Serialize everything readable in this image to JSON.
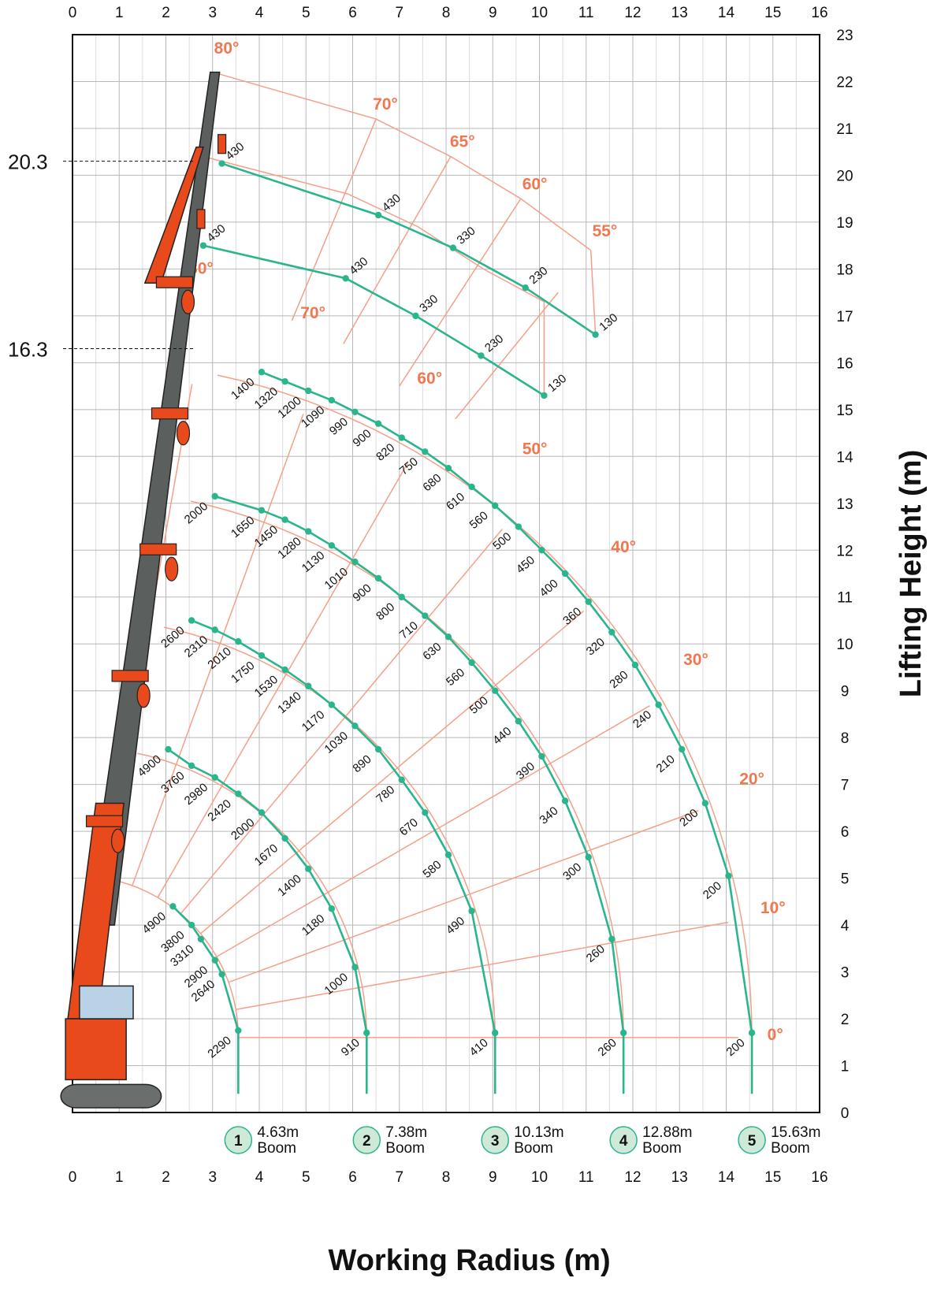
{
  "chart_data": {
    "type": "line",
    "xlabel": "Working Radius (m)",
    "ylabel": "Lifting Height (m)",
    "xlim": [
      0,
      16
    ],
    "ylim": [
      0,
      23
    ],
    "x_ticks": [
      "0",
      "1",
      "2",
      "3",
      "4",
      "5",
      "6",
      "7",
      "8",
      "9",
      "10",
      "11",
      "12",
      "13",
      "14",
      "15",
      "16"
    ],
    "y_ticks": [
      "0",
      "1",
      "2",
      "3",
      "4",
      "5",
      "6",
      "7",
      "8",
      "9",
      "10",
      "11",
      "12",
      "13",
      "14",
      "15",
      "16",
      "17",
      "18",
      "19",
      "20",
      "21",
      "22",
      "23"
    ],
    "grid": true,
    "height_markers": [
      {
        "label": "20.3",
        "y": 20.3
      },
      {
        "label": "16.3",
        "y": 16.3
      }
    ],
    "booms": [
      {
        "number": "1",
        "length": "4.63m",
        "word": "Boom",
        "radius": 3.55
      },
      {
        "number": "2",
        "length": "7.38m",
        "word": "Boom",
        "radius": 6.3
      },
      {
        "number": "3",
        "length": "10.13m",
        "word": "Boom",
        "radius": 9.05
      },
      {
        "number": "4",
        "length": "12.88m",
        "word": "Boom",
        "radius": 11.8
      },
      {
        "number": "5",
        "length": "15.63m",
        "word": "Boom",
        "radius": 14.55
      }
    ],
    "boom_angles": [
      "80°",
      "70°",
      "65°",
      "60°",
      "55°",
      "80°",
      "70°",
      "60°",
      "50°",
      "40°",
      "30°",
      "20°",
      "10°",
      "0°"
    ],
    "series": [
      {
        "points": [
          {
            "x": 2.15,
            "y": 4.4,
            "label": "4900"
          },
          {
            "x": 2.55,
            "y": 4.0,
            "label": "3800"
          },
          {
            "x": 2.75,
            "y": 3.7,
            "label": "3310"
          },
          {
            "x": 3.05,
            "y": 3.25,
            "label": "2900"
          },
          {
            "x": 3.2,
            "y": 2.95,
            "label": "2640"
          },
          {
            "x": 3.55,
            "y": 1.75,
            "label": "2290"
          }
        ]
      },
      {
        "points": [
          {
            "x": 2.05,
            "y": 7.75,
            "label": "4900"
          },
          {
            "x": 2.55,
            "y": 7.4,
            "label": "3760"
          },
          {
            "x": 3.05,
            "y": 7.15,
            "label": "2980"
          },
          {
            "x": 3.55,
            "y": 6.8,
            "label": "2420"
          },
          {
            "x": 4.05,
            "y": 6.4,
            "label": "2000"
          },
          {
            "x": 4.55,
            "y": 5.85,
            "label": "1670"
          },
          {
            "x": 5.05,
            "y": 5.2,
            "label": "1400"
          },
          {
            "x": 5.55,
            "y": 4.35,
            "label": "1180"
          },
          {
            "x": 6.05,
            "y": 3.1,
            "label": "1000"
          },
          {
            "x": 6.3,
            "y": 1.7,
            "label": "910"
          }
        ]
      },
      {
        "points": [
          {
            "x": 2.55,
            "y": 10.5,
            "label": "2600"
          },
          {
            "x": 3.05,
            "y": 10.3,
            "label": "2310"
          },
          {
            "x": 3.55,
            "y": 10.05,
            "label": "2010"
          },
          {
            "x": 4.05,
            "y": 9.75,
            "label": "1750"
          },
          {
            "x": 4.55,
            "y": 9.45,
            "label": "1530"
          },
          {
            "x": 5.05,
            "y": 9.1,
            "label": "1340"
          },
          {
            "x": 5.55,
            "y": 8.7,
            "label": "1170"
          },
          {
            "x": 6.05,
            "y": 8.25,
            "label": "1030"
          },
          {
            "x": 6.55,
            "y": 7.75,
            "label": "890"
          },
          {
            "x": 7.05,
            "y": 7.1,
            "label": "780"
          },
          {
            "x": 7.55,
            "y": 6.4,
            "label": "670"
          },
          {
            "x": 8.05,
            "y": 5.5,
            "label": "580"
          },
          {
            "x": 8.55,
            "y": 4.3,
            "label": "490"
          },
          {
            "x": 9.05,
            "y": 1.7,
            "label": "410"
          }
        ]
      },
      {
        "points": [
          {
            "x": 3.05,
            "y": 13.15,
            "label": "2000"
          },
          {
            "x": 4.05,
            "y": 12.85,
            "label": "1650"
          },
          {
            "x": 4.55,
            "y": 12.65,
            "label": "1450"
          },
          {
            "x": 5.05,
            "y": 12.4,
            "label": "1280"
          },
          {
            "x": 5.55,
            "y": 12.1,
            "label": "1130"
          },
          {
            "x": 6.05,
            "y": 11.75,
            "label": "1010"
          },
          {
            "x": 6.55,
            "y": 11.4,
            "label": "900"
          },
          {
            "x": 7.05,
            "y": 11.0,
            "label": "800"
          },
          {
            "x": 7.55,
            "y": 10.6,
            "label": "710"
          },
          {
            "x": 8.05,
            "y": 10.15,
            "label": "630"
          },
          {
            "x": 8.55,
            "y": 9.6,
            "label": "560"
          },
          {
            "x": 9.05,
            "y": 9.0,
            "label": "500"
          },
          {
            "x": 9.55,
            "y": 8.35,
            "label": "440"
          },
          {
            "x": 10.05,
            "y": 7.6,
            "label": "390"
          },
          {
            "x": 10.55,
            "y": 6.65,
            "label": "340"
          },
          {
            "x": 11.05,
            "y": 5.45,
            "label": "300"
          },
          {
            "x": 11.55,
            "y": 3.7,
            "label": "260"
          },
          {
            "x": 11.8,
            "y": 1.7,
            "label": "260"
          }
        ]
      },
      {
        "points": [
          {
            "x": 4.05,
            "y": 15.8,
            "label": "1400"
          },
          {
            "x": 4.55,
            "y": 15.6,
            "label": "1320"
          },
          {
            "x": 5.05,
            "y": 15.4,
            "label": "1200"
          },
          {
            "x": 5.55,
            "y": 15.2,
            "label": "1090"
          },
          {
            "x": 6.05,
            "y": 14.95,
            "label": "990"
          },
          {
            "x": 6.55,
            "y": 14.7,
            "label": "900"
          },
          {
            "x": 7.05,
            "y": 14.4,
            "label": "820"
          },
          {
            "x": 7.55,
            "y": 14.1,
            "label": "750"
          },
          {
            "x": 8.05,
            "y": 13.75,
            "label": "680"
          },
          {
            "x": 8.55,
            "y": 13.35,
            "label": "610"
          },
          {
            "x": 9.05,
            "y": 12.95,
            "label": "560"
          },
          {
            "x": 9.55,
            "y": 12.5,
            "label": "500"
          },
          {
            "x": 10.05,
            "y": 12.0,
            "label": "450"
          },
          {
            "x": 10.55,
            "y": 11.5,
            "label": "400"
          },
          {
            "x": 11.05,
            "y": 10.9,
            "label": "360"
          },
          {
            "x": 11.55,
            "y": 10.25,
            "label": "320"
          },
          {
            "x": 12.05,
            "y": 9.55,
            "label": "280"
          },
          {
            "x": 12.55,
            "y": 8.7,
            "label": "240"
          },
          {
            "x": 13.05,
            "y": 7.75,
            "label": "210"
          },
          {
            "x": 13.55,
            "y": 6.6,
            "label": "200"
          },
          {
            "x": 14.05,
            "y": 5.05,
            "label": "200"
          },
          {
            "x": 14.55,
            "y": 1.7,
            "label": "200"
          }
        ]
      },
      {
        "points": [
          {
            "x": 2.8,
            "y": 18.5,
            "label": "430"
          },
          {
            "x": 5.85,
            "y": 17.8,
            "label": "430"
          },
          {
            "x": 7.35,
            "y": 17.0,
            "label": "330"
          },
          {
            "x": 8.75,
            "y": 16.15,
            "label": "230"
          },
          {
            "x": 10.1,
            "y": 15.3,
            "label": "130"
          }
        ]
      },
      {
        "points": [
          {
            "x": 3.2,
            "y": 20.25,
            "label": "430"
          },
          {
            "x": 6.55,
            "y": 19.15,
            "label": "430"
          },
          {
            "x": 8.15,
            "y": 18.45,
            "label": "330"
          },
          {
            "x": 9.7,
            "y": 17.6,
            "label": "230"
          },
          {
            "x": 11.2,
            "y": 16.6,
            "label": "130"
          }
        ]
      }
    ]
  }
}
